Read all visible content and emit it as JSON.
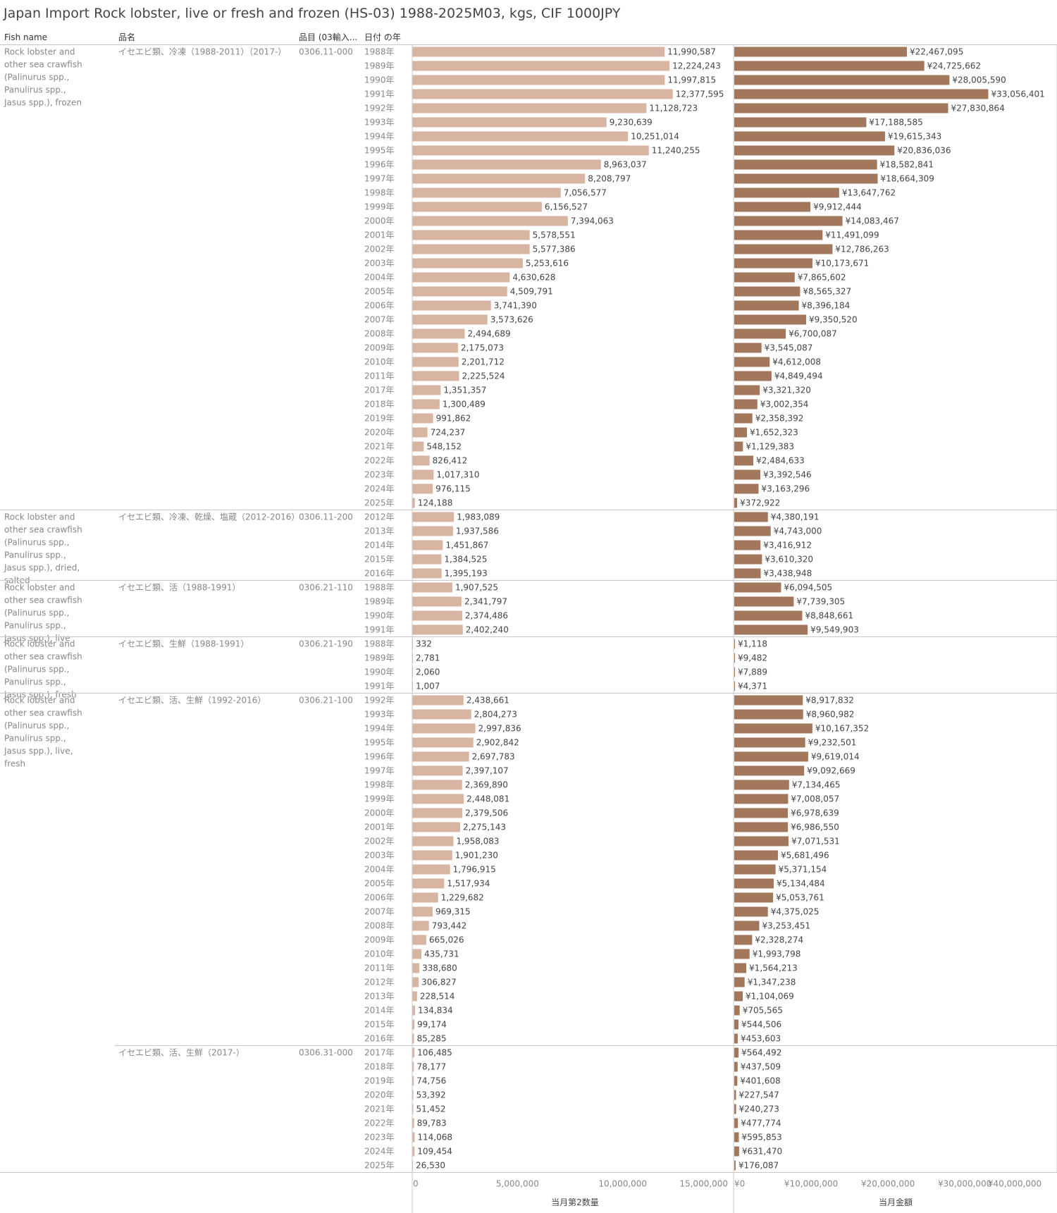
{
  "title": "Japan Import Rock lobster, live or fresh and frozen (HS-03) 1988-2025M03, kgs, CIF 1000JPY",
  "headers": {
    "fish_name": "Fish name",
    "hinmei": "品名",
    "code": "品目 (03輸入...",
    "year": "日付 の年"
  },
  "axis": {
    "qty_ticks": [
      "0",
      "5,000,000",
      "10,000,000",
      "15,000,000"
    ],
    "amt_ticks": [
      "¥0",
      "¥10,000,000",
      "¥20,000,000",
      "¥30,000,000",
      "¥40,000,000"
    ],
    "qty_title": "当月第2数量",
    "amt_title": "当月金額"
  },
  "colors": {
    "qty_bar": "#d8b4a3",
    "amt_bar": "#a3775b",
    "grid_line": "#d6d6d6"
  },
  "chart_data": {
    "type": "bar",
    "orientation": "horizontal",
    "title": "Japan Import Rock lobster, live or fresh and frozen (HS-03) 1988-2025M03, kgs, CIF 1000JPY",
    "series": [
      {
        "name": "当月第2数量",
        "xlim": [
          0,
          15500000
        ]
      },
      {
        "name": "当月金額",
        "xlim": [
          0,
          42000000
        ]
      }
    ],
    "groups": [
      {
        "fish": "Rock lobster and other sea crawfish (Palinurus spp., Panulirus spp., Jasus spp.), frozen",
        "subgroups": [
          {
            "hinmei": "イセエビ類、冷凍（1988-2011）（2017-）",
            "code": "0306.11-000",
            "rows": [
              {
                "year": "1988年",
                "qty": 11990587,
                "qty_label": "11,990,587",
                "amt": 22467095,
                "amt_label": "¥22,467,095"
              },
              {
                "year": "1989年",
                "qty": 12224243,
                "qty_label": "12,224,243",
                "amt": 24725662,
                "amt_label": "¥24,725,662"
              },
              {
                "year": "1990年",
                "qty": 11997815,
                "qty_label": "11,997,815",
                "amt": 28005590,
                "amt_label": "¥28,005,590"
              },
              {
                "year": "1991年",
                "qty": 12377595,
                "qty_label": "12,377,595",
                "amt": 33056401,
                "amt_label": "¥33,056,401"
              },
              {
                "year": "1992年",
                "qty": 11128723,
                "qty_label": "11,128,723",
                "amt": 27830864,
                "amt_label": "¥27,830,864"
              },
              {
                "year": "1993年",
                "qty": 9230639,
                "qty_label": "9,230,639",
                "amt": 17188585,
                "amt_label": "¥17,188,585"
              },
              {
                "year": "1994年",
                "qty": 10251014,
                "qty_label": "10,251,014",
                "amt": 19615343,
                "amt_label": "¥19,615,343"
              },
              {
                "year": "1995年",
                "qty": 11240255,
                "qty_label": "11,240,255",
                "amt": 20836036,
                "amt_label": "¥20,836,036"
              },
              {
                "year": "1996年",
                "qty": 8963037,
                "qty_label": "8,963,037",
                "amt": 18582841,
                "amt_label": "¥18,582,841"
              },
              {
                "year": "1997年",
                "qty": 8208797,
                "qty_label": "8,208,797",
                "amt": 18664309,
                "amt_label": "¥18,664,309"
              },
              {
                "year": "1998年",
                "qty": 7056577,
                "qty_label": "7,056,577",
                "amt": 13647762,
                "amt_label": "¥13,647,762"
              },
              {
                "year": "1999年",
                "qty": 6156527,
                "qty_label": "6,156,527",
                "amt": 9912444,
                "amt_label": "¥9,912,444"
              },
              {
                "year": "2000年",
                "qty": 7394063,
                "qty_label": "7,394,063",
                "amt": 14083467,
                "amt_label": "¥14,083,467"
              },
              {
                "year": "2001年",
                "qty": 5578551,
                "qty_label": "5,578,551",
                "amt": 11491099,
                "amt_label": "¥11,491,099"
              },
              {
                "year": "2002年",
                "qty": 5577386,
                "qty_label": "5,577,386",
                "amt": 12786263,
                "amt_label": "¥12,786,263"
              },
              {
                "year": "2003年",
                "qty": 5253616,
                "qty_label": "5,253,616",
                "amt": 10173671,
                "amt_label": "¥10,173,671"
              },
              {
                "year": "2004年",
                "qty": 4630628,
                "qty_label": "4,630,628",
                "amt": 7865602,
                "amt_label": "¥7,865,602"
              },
              {
                "year": "2005年",
                "qty": 4509791,
                "qty_label": "4,509,791",
                "amt": 8565327,
                "amt_label": "¥8,565,327"
              },
              {
                "year": "2006年",
                "qty": 3741390,
                "qty_label": "3,741,390",
                "amt": 8396184,
                "amt_label": "¥8,396,184"
              },
              {
                "year": "2007年",
                "qty": 3573626,
                "qty_label": "3,573,626",
                "amt": 9350520,
                "amt_label": "¥9,350,520"
              },
              {
                "year": "2008年",
                "qty": 2494689,
                "qty_label": "2,494,689",
                "amt": 6700087,
                "amt_label": "¥6,700,087"
              },
              {
                "year": "2009年",
                "qty": 2175073,
                "qty_label": "2,175,073",
                "amt": 3545087,
                "amt_label": "¥3,545,087"
              },
              {
                "year": "2010年",
                "qty": 2201712,
                "qty_label": "2,201,712",
                "amt": 4612008,
                "amt_label": "¥4,612,008"
              },
              {
                "year": "2011年",
                "qty": 2225524,
                "qty_label": "2,225,524",
                "amt": 4849494,
                "amt_label": "¥4,849,494"
              },
              {
                "year": "2017年",
                "qty": 1351357,
                "qty_label": "1,351,357",
                "amt": 3321320,
                "amt_label": "¥3,321,320"
              },
              {
                "year": "2018年",
                "qty": 1300489,
                "qty_label": "1,300,489",
                "amt": 3002354,
                "amt_label": "¥3,002,354"
              },
              {
                "year": "2019年",
                "qty": 991862,
                "qty_label": "991,862",
                "amt": 2358392,
                "amt_label": "¥2,358,392"
              },
              {
                "year": "2020年",
                "qty": 724237,
                "qty_label": "724,237",
                "amt": 1652323,
                "amt_label": "¥1,652,323"
              },
              {
                "year": "2021年",
                "qty": 548152,
                "qty_label": "548,152",
                "amt": 1129383,
                "amt_label": "¥1,129,383"
              },
              {
                "year": "2022年",
                "qty": 826412,
                "qty_label": "826,412",
                "amt": 2484633,
                "amt_label": "¥2,484,633"
              },
              {
                "year": "2023年",
                "qty": 1017310,
                "qty_label": "1,017,310",
                "amt": 3392546,
                "amt_label": "¥3,392,546"
              },
              {
                "year": "2024年",
                "qty": 976115,
                "qty_label": "976,115",
                "amt": 3163296,
                "amt_label": "¥3,163,296"
              },
              {
                "year": "2025年",
                "qty": 124188,
                "qty_label": "124,188",
                "amt": 372922,
                "amt_label": "¥372,922"
              }
            ]
          }
        ]
      },
      {
        "fish": "Rock lobster and other sea crawfish (Palinurus spp., Panulirus spp., Jasus spp.), dried, salted",
        "subgroups": [
          {
            "hinmei": "イセエビ類、冷凍、乾燥、塩蔵（2012-2016）",
            "code": "0306.11-200",
            "rows": [
              {
                "year": "2012年",
                "qty": 1983089,
                "qty_label": "1,983,089",
                "amt": 4380191,
                "amt_label": "¥4,380,191"
              },
              {
                "year": "2013年",
                "qty": 1937586,
                "qty_label": "1,937,586",
                "amt": 4743000,
                "amt_label": "¥4,743,000"
              },
              {
                "year": "2014年",
                "qty": 1451867,
                "qty_label": "1,451,867",
                "amt": 3416912,
                "amt_label": "¥3,416,912"
              },
              {
                "year": "2015年",
                "qty": 1384525,
                "qty_label": "1,384,525",
                "amt": 3610320,
                "amt_label": "¥3,610,320"
              },
              {
                "year": "2016年",
                "qty": 1395193,
                "qty_label": "1,395,193",
                "amt": 3438948,
                "amt_label": "¥3,438,948"
              }
            ]
          }
        ]
      },
      {
        "fish": "Rock lobster and other sea crawfish (Palinurus spp., Panulirus spp., Jasus spp.), live",
        "subgroups": [
          {
            "hinmei": "イセエビ類、活（1988-1991）",
            "code": "0306.21-110",
            "rows": [
              {
                "year": "1988年",
                "qty": 1907525,
                "qty_label": "1,907,525",
                "amt": 6094505,
                "amt_label": "¥6,094,505"
              },
              {
                "year": "1989年",
                "qty": 2341797,
                "qty_label": "2,341,797",
                "amt": 7739305,
                "amt_label": "¥7,739,305"
              },
              {
                "year": "1990年",
                "qty": 2374486,
                "qty_label": "2,374,486",
                "amt": 8848661,
                "amt_label": "¥8,848,661"
              },
              {
                "year": "1991年",
                "qty": 2402240,
                "qty_label": "2,402,240",
                "amt": 9549903,
                "amt_label": "¥9,549,903"
              }
            ]
          }
        ]
      },
      {
        "fish": "Rock lobster and other sea crawfish (Palinurus spp., Panulirus spp., Jasus spp.), fresh",
        "subgroups": [
          {
            "hinmei": "イセエビ類、生鮮（1988-1991）",
            "code": "0306.21-190",
            "rows": [
              {
                "year": "1988年",
                "qty": 332,
                "qty_label": "332",
                "amt": 1118,
                "amt_label": "¥1,118"
              },
              {
                "year": "1989年",
                "qty": 2781,
                "qty_label": "2,781",
                "amt": 9482,
                "amt_label": "¥9,482"
              },
              {
                "year": "1990年",
                "qty": 2060,
                "qty_label": "2,060",
                "amt": 7889,
                "amt_label": "¥7,889"
              },
              {
                "year": "1991年",
                "qty": 1007,
                "qty_label": "1,007",
                "amt": 4371,
                "amt_label": "¥4,371"
              }
            ]
          }
        ]
      },
      {
        "fish": "Rock lobster and other sea crawfish (Palinurus spp., Panulirus spp., Jasus spp.), live, fresh",
        "subgroups": [
          {
            "hinmei": "イセエビ類、活、生鮮（1992-2016）",
            "code": "0306.21-100",
            "rows": [
              {
                "year": "1992年",
                "qty": 2438661,
                "qty_label": "2,438,661",
                "amt": 8917832,
                "amt_label": "¥8,917,832"
              },
              {
                "year": "1993年",
                "qty": 2804273,
                "qty_label": "2,804,273",
                "amt": 8960982,
                "amt_label": "¥8,960,982"
              },
              {
                "year": "1994年",
                "qty": 2997836,
                "qty_label": "2,997,836",
                "amt": 10167352,
                "amt_label": "¥10,167,352"
              },
              {
                "year": "1995年",
                "qty": 2902842,
                "qty_label": "2,902,842",
                "amt": 9232501,
                "amt_label": "¥9,232,501"
              },
              {
                "year": "1996年",
                "qty": 2697783,
                "qty_label": "2,697,783",
                "amt": 9619014,
                "amt_label": "¥9,619,014"
              },
              {
                "year": "1997年",
                "qty": 2397107,
                "qty_label": "2,397,107",
                "amt": 9092669,
                "amt_label": "¥9,092,669"
              },
              {
                "year": "1998年",
                "qty": 2369890,
                "qty_label": "2,369,890",
                "amt": 7134465,
                "amt_label": "¥7,134,465"
              },
              {
                "year": "1999年",
                "qty": 2448081,
                "qty_label": "2,448,081",
                "amt": 7008057,
                "amt_label": "¥7,008,057"
              },
              {
                "year": "2000年",
                "qty": 2379506,
                "qty_label": "2,379,506",
                "amt": 6978639,
                "amt_label": "¥6,978,639"
              },
              {
                "year": "2001年",
                "qty": 2275143,
                "qty_label": "2,275,143",
                "amt": 6986550,
                "amt_label": "¥6,986,550"
              },
              {
                "year": "2002年",
                "qty": 1958083,
                "qty_label": "1,958,083",
                "amt": 7071531,
                "amt_label": "¥7,071,531"
              },
              {
                "year": "2003年",
                "qty": 1901230,
                "qty_label": "1,901,230",
                "amt": 5681496,
                "amt_label": "¥5,681,496"
              },
              {
                "year": "2004年",
                "qty": 1796915,
                "qty_label": "1,796,915",
                "amt": 5371154,
                "amt_label": "¥5,371,154"
              },
              {
                "year": "2005年",
                "qty": 1517934,
                "qty_label": "1,517,934",
                "amt": 5134484,
                "amt_label": "¥5,134,484"
              },
              {
                "year": "2006年",
                "qty": 1229682,
                "qty_label": "1,229,682",
                "amt": 5053761,
                "amt_label": "¥5,053,761"
              },
              {
                "year": "2007年",
                "qty": 969315,
                "qty_label": "969,315",
                "amt": 4375025,
                "amt_label": "¥4,375,025"
              },
              {
                "year": "2008年",
                "qty": 793442,
                "qty_label": "793,442",
                "amt": 3253451,
                "amt_label": "¥3,253,451"
              },
              {
                "year": "2009年",
                "qty": 665026,
                "qty_label": "665,026",
                "amt": 2328274,
                "amt_label": "¥2,328,274"
              },
              {
                "year": "2010年",
                "qty": 435731,
                "qty_label": "435,731",
                "amt": 1993798,
                "amt_label": "¥1,993,798"
              },
              {
                "year": "2011年",
                "qty": 338680,
                "qty_label": "338,680",
                "amt": 1564213,
                "amt_label": "¥1,564,213"
              },
              {
                "year": "2012年",
                "qty": 306827,
                "qty_label": "306,827",
                "amt": 1347238,
                "amt_label": "¥1,347,238"
              },
              {
                "year": "2013年",
                "qty": 228514,
                "qty_label": "228,514",
                "amt": 1104069,
                "amt_label": "¥1,104,069"
              },
              {
                "year": "2014年",
                "qty": 134834,
                "qty_label": "134,834",
                "amt": 705565,
                "amt_label": "¥705,565"
              },
              {
                "year": "2015年",
                "qty": 99174,
                "qty_label": "99,174",
                "amt": 544506,
                "amt_label": "¥544,506"
              },
              {
                "year": "2016年",
                "qty": 85285,
                "qty_label": "85,285",
                "amt": 453603,
                "amt_label": "¥453,603"
              }
            ]
          },
          {
            "hinmei": "イセエビ類、活、生鮮（2017-）",
            "code": "0306.31-000",
            "rows": [
              {
                "year": "2017年",
                "qty": 106485,
                "qty_label": "106,485",
                "amt": 564492,
                "amt_label": "¥564,492"
              },
              {
                "year": "2018年",
                "qty": 78177,
                "qty_label": "78,177",
                "amt": 437509,
                "amt_label": "¥437,509"
              },
              {
                "year": "2019年",
                "qty": 74756,
                "qty_label": "74,756",
                "amt": 401608,
                "amt_label": "¥401,608"
              },
              {
                "year": "2020年",
                "qty": 53392,
                "qty_label": "53,392",
                "amt": 227547,
                "amt_label": "¥227,547"
              },
              {
                "year": "2021年",
                "qty": 51452,
                "qty_label": "51,452",
                "amt": 240273,
                "amt_label": "¥240,273"
              },
              {
                "year": "2022年",
                "qty": 89783,
                "qty_label": "89,783",
                "amt": 477774,
                "amt_label": "¥477,774"
              },
              {
                "year": "2023年",
                "qty": 114068,
                "qty_label": "114,068",
                "amt": 595853,
                "amt_label": "¥595,853"
              },
              {
                "year": "2024年",
                "qty": 109454,
                "qty_label": "109,454",
                "amt": 631470,
                "amt_label": "¥631,470"
              },
              {
                "year": "2025年",
                "qty": 26530,
                "qty_label": "26,530",
                "amt": 176087,
                "amt_label": "¥176,087"
              }
            ]
          }
        ]
      }
    ]
  }
}
